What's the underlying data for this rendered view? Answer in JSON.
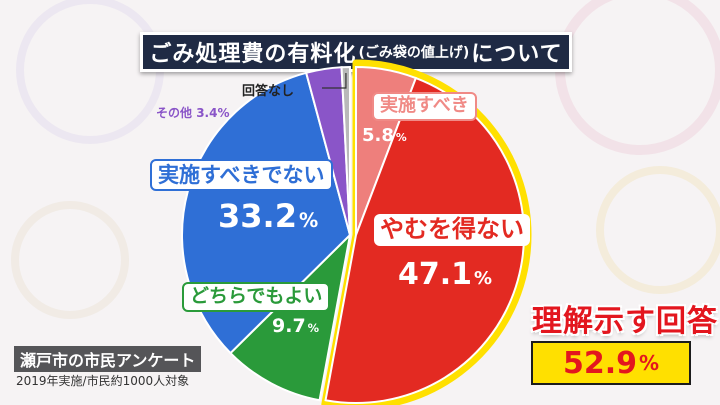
{
  "title": {
    "main_a": "ごみ処理費の有料化",
    "sub": "(ごみ袋の値上げ)",
    "main_b": "について"
  },
  "chart_data": {
    "type": "pie",
    "title": "ごみ処理費の有料化(ごみ袋の値上げ)について",
    "slices": [
      {
        "label": "実施すべき",
        "value": 5.8,
        "value_text": "5.8",
        "color": "#ee7f7c"
      },
      {
        "label": "やむを得ない",
        "value": 47.1,
        "value_text": "47.1",
        "color": "#e32a22"
      },
      {
        "label": "どちらでもよい",
        "value": 9.7,
        "value_text": "9.7",
        "color": "#2a9a3a"
      },
      {
        "label": "実施すべきでない",
        "value": 33.2,
        "value_text": "33.2",
        "color": "#2f6fd6"
      },
      {
        "label": "その他",
        "value": 3.4,
        "value_text": "3.4%",
        "color": "#8a55c8"
      },
      {
        "label": "回答なし",
        "value": 0.8,
        "color": "#b9b9b9"
      }
    ],
    "unit": "%",
    "highlight": {
      "label": "理解示す回答",
      "value": 52.9,
      "value_text": "52.9",
      "color": "#ffe000"
    }
  },
  "source": {
    "title": "瀬戸市の市民アンケート",
    "note": "2019年実施/市民約1000人対象"
  }
}
